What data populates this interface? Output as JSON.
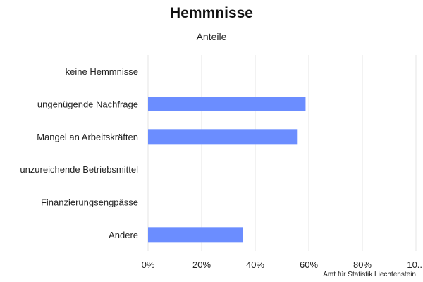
{
  "chart_data": {
    "type": "bar",
    "orientation": "horizontal",
    "title": "Hemmnisse",
    "subtitle": "Anteile",
    "credits": "Amt für Statistik Liechtenstein",
    "categories": [
      "keine Hemmnisse",
      "ungenügende Nachfrage",
      "Mangel an Arbeitskräften",
      "unzureichende Betriebsmittel",
      "Finanzierungsengpässe",
      "Andere"
    ],
    "values": [
      0,
      58.8,
      55.6,
      0,
      0,
      35.3
    ],
    "x_ticks": [
      "0%",
      "20%",
      "40%",
      "60%",
      "80%",
      "10..."
    ],
    "xlim": [
      0,
      100
    ],
    "grid": true,
    "bar_color": "#6b8dff",
    "grid_color": "#e6e6e6"
  }
}
